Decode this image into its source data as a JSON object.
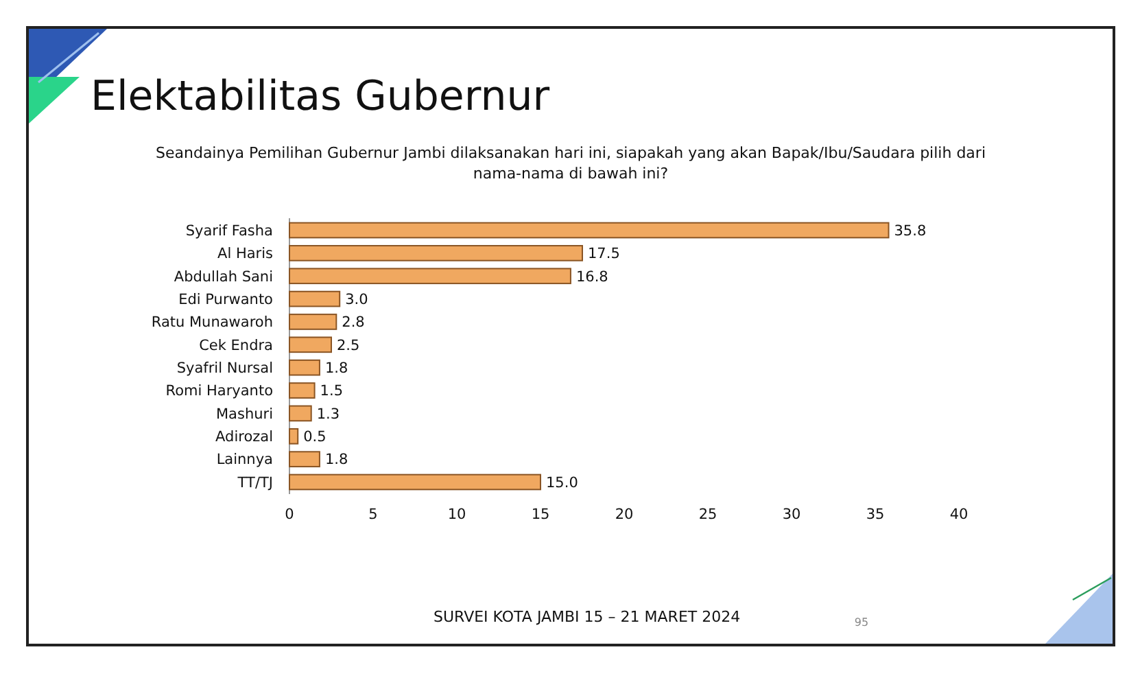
{
  "chart_data": {
    "type": "bar",
    "orientation": "horizontal",
    "title": "Elektabilitas Gubernur",
    "subtitle": "Seandainya Pemilihan Gubernur Jambi dilaksanakan hari ini, siapakah yang akan Bapak/Ibu/Saudara pilih dari nama-nama di bawah ini?",
    "categories": [
      "Syarif Fasha",
      "Al Haris",
      "Abdullah Sani",
      "Edi Purwanto",
      "Ratu Munawaroh",
      "Cek Endra",
      "Syafril Nursal",
      "Romi Haryanto",
      "Mashuri",
      "Adirozal",
      "Lainnya",
      "TT/TJ"
    ],
    "values": [
      35.8,
      17.5,
      16.8,
      3.0,
      2.8,
      2.5,
      1.8,
      1.5,
      1.3,
      0.5,
      1.8,
      15.0
    ],
    "color": "#f0a860",
    "value_labels": [
      "35.8",
      "17.5",
      "16.8",
      "3.0",
      "2.8",
      "2.5",
      "1.8",
      "1.5",
      "1.3",
      "0.5",
      "1.8",
      "15.0"
    ],
    "xlim": [
      0,
      40
    ],
    "xticks": [
      0,
      5,
      10,
      15,
      20,
      25,
      30,
      35,
      40
    ],
    "grid": false,
    "annotations": [
      "SURVEI KOTA JAMBI 15 – 21 MARET 2024",
      "95"
    ]
  }
}
